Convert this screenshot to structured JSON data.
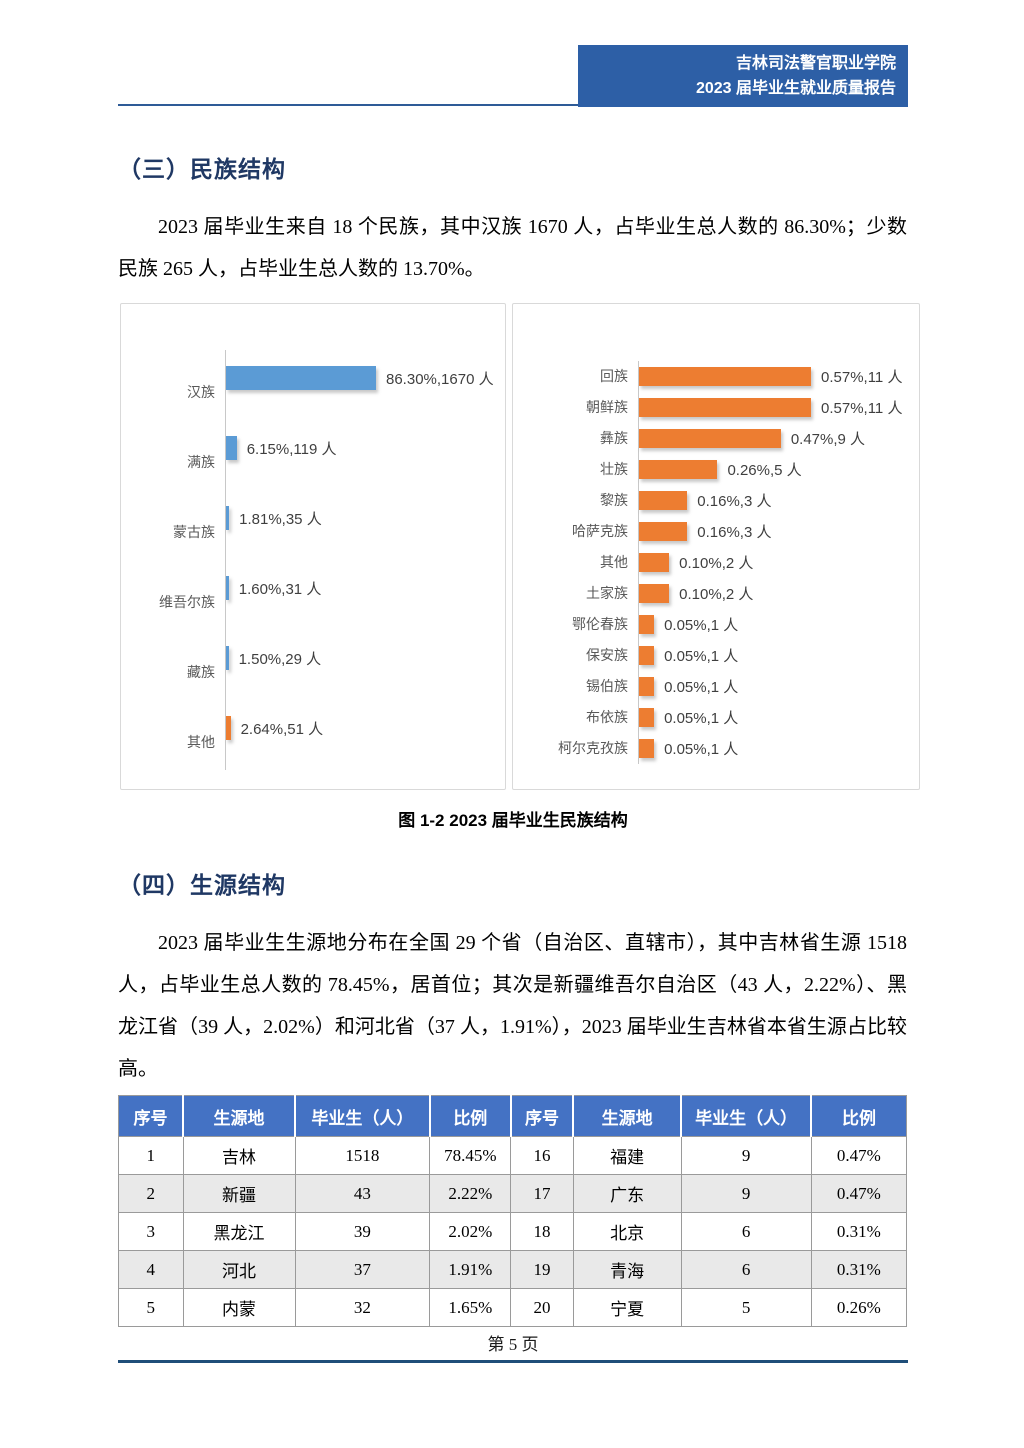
{
  "header": {
    "org": "吉林司法警官职业学院",
    "report": "2023 届毕业生就业质量报告"
  },
  "section3": {
    "title": "（三）民族结构",
    "paragraph": "2023 届毕业生来自 18 个民族，其中汉族 1670 人，占毕业生总人数的 86.30%；少数民族 265 人，占毕业生总人数的 13.70%。"
  },
  "chart_data": [
    {
      "type": "bar",
      "orientation": "horizontal",
      "title": "",
      "xlabel": "",
      "ylabel": "",
      "legend": "none",
      "grid": "off",
      "categories": [
        "汉族",
        "满族",
        "蒙古族",
        "维吾尔族",
        "藏族",
        "其他"
      ],
      "values_pct": [
        86.3,
        6.15,
        1.81,
        1.6,
        1.5,
        2.64
      ],
      "counts": [
        1670,
        119,
        35,
        31,
        29,
        51
      ],
      "labels": [
        "86.30%,1670 人",
        "6.15%,119 人",
        "1.81%,35 人",
        "1.60%,31 人",
        "1.50%,29 人",
        "2.64%,51 人"
      ],
      "bar_colors": [
        "#5B9BD5",
        "#5B9BD5",
        "#5B9BD5",
        "#5B9BD5",
        "#5B9BD5",
        "#ED7D31"
      ]
    },
    {
      "type": "bar",
      "orientation": "horizontal",
      "title": "",
      "xlabel": "",
      "ylabel": "",
      "legend": "none",
      "grid": "off",
      "categories": [
        "回族",
        "朝鲜族",
        "彝族",
        "壮族",
        "黎族",
        "哈萨克族",
        "其他",
        "土家族",
        "鄂伦春族",
        "保安族",
        "锡伯族",
        "布依族",
        "柯尔克孜族"
      ],
      "values_pct": [
        0.57,
        0.57,
        0.47,
        0.26,
        0.16,
        0.16,
        0.1,
        0.1,
        0.05,
        0.05,
        0.05,
        0.05,
        0.05
      ],
      "counts": [
        11,
        11,
        9,
        5,
        3,
        3,
        2,
        2,
        1,
        1,
        1,
        1,
        1
      ],
      "labels": [
        "0.57%,11 人",
        "0.57%,11 人",
        "0.47%,9 人",
        "0.26%,5 人",
        "0.16%,3 人",
        "0.16%,3 人",
        "0.10%,2 人",
        "0.10%,2 人",
        "0.05%,1 人",
        "0.05%,1 人",
        "0.05%,1 人",
        "0.05%,1 人",
        "0.05%,1 人"
      ],
      "bar_colors": [
        "#ED7D31",
        "#ED7D31",
        "#ED7D31",
        "#ED7D31",
        "#ED7D31",
        "#ED7D31",
        "#ED7D31",
        "#ED7D31",
        "#ED7D31",
        "#ED7D31",
        "#ED7D31",
        "#ED7D31",
        "#ED7D31"
      ]
    }
  ],
  "figure_caption": "图 1-2 2023 届毕业生民族结构",
  "section4": {
    "title": "（四）生源结构",
    "paragraph": "2023 届毕业生生源地分布在全国 29 个省（自治区、直辖市），其中吉林省生源 1518 人，占毕业生总人数的 78.45%，居首位；其次是新疆维吾尔自治区（43 人，2.22%）、黑龙江省（39 人，2.02%）和河北省（37 人，1.91%），2023 届毕业生吉林省本省生源占比较高。"
  },
  "table": {
    "headers": [
      "序号",
      "生源地",
      "毕业生（人）",
      "比例",
      "序号",
      "生源地",
      "毕业生（人）",
      "比例"
    ],
    "rows": [
      [
        "1",
        "吉林",
        "1518",
        "78.45%",
        "16",
        "福建",
        "9",
        "0.47%"
      ],
      [
        "2",
        "新疆",
        "43",
        "2.22%",
        "17",
        "广东",
        "9",
        "0.47%"
      ],
      [
        "3",
        "黑龙江",
        "39",
        "2.02%",
        "18",
        "北京",
        "6",
        "0.31%"
      ],
      [
        "4",
        "河北",
        "37",
        "1.91%",
        "19",
        "青海",
        "6",
        "0.31%"
      ],
      [
        "5",
        "内蒙",
        "32",
        "1.65%",
        "20",
        "宁夏",
        "5",
        "0.26%"
      ]
    ]
  },
  "footer": {
    "page_number": "第 5 页"
  },
  "colors": {
    "header_box": "#2D5FA6",
    "heading_text": "#1F3864",
    "table_header": "#4472C4",
    "bar_blue": "#5B9BD5",
    "bar_orange": "#ED7D31",
    "footer_rule": "#1F4E79"
  }
}
